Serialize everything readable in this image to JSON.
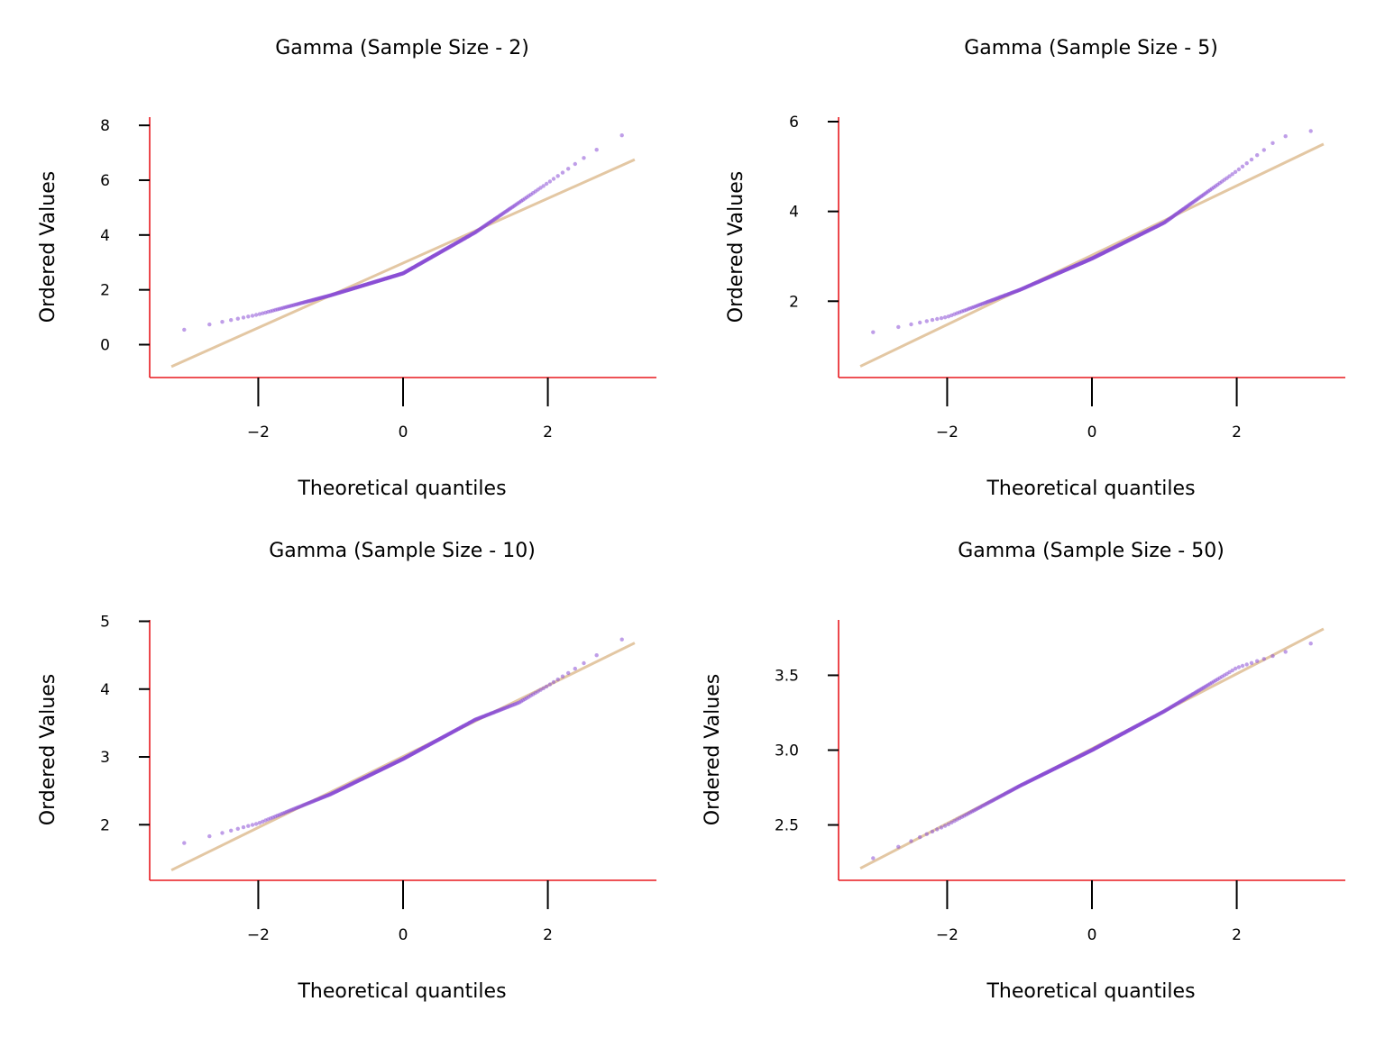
{
  "colors": {
    "spine": "#e8191f",
    "points": "#8a4fd6",
    "fit_line": "#e3c7a3",
    "ticks": "#000000",
    "background": "#ffffff"
  },
  "chart_data": [
    {
      "type": "scatter",
      "title": "Gamma (Sample Size - 2)",
      "xlabel": "Theoretical quantiles",
      "ylabel": "Ordered Values",
      "xlim": [
        -3.5,
        3.5
      ],
      "ylim": [
        -1.2,
        8.3
      ],
      "xticks": [
        -2,
        0,
        2
      ],
      "xtick_labels": [
        "−2",
        "0",
        "2"
      ],
      "yticks": [
        0,
        2,
        4,
        6,
        8
      ],
      "ytick_labels": [
        "0",
        "2",
        "4",
        "6",
        "8"
      ],
      "fit_line": {
        "x": [
          -3.2,
          3.2
        ],
        "y": [
          -0.8,
          6.75
        ]
      },
      "quantile_curve": {
        "x": [
          -3.2,
          -2.0,
          -1.0,
          0.0,
          1.0,
          2.0,
          2.6,
          3.2
        ],
        "y": [
          0.45,
          1.1,
          1.8,
          2.6,
          4.1,
          5.9,
          7.0,
          7.9
        ]
      },
      "grid": false,
      "legend": "none"
    },
    {
      "type": "scatter",
      "title": "Gamma (Sample Size - 5)",
      "xlabel": "Theoretical quantiles",
      "ylabel": "Ordered Values",
      "xlim": [
        -3.5,
        3.5
      ],
      "ylim": [
        0.3,
        6.1
      ],
      "xticks": [
        -2,
        0,
        2
      ],
      "xtick_labels": [
        "−2",
        "0",
        "2"
      ],
      "yticks": [
        2,
        4,
        6
      ],
      "ytick_labels": [
        "2",
        "4",
        "6"
      ],
      "fit_line": {
        "x": [
          -3.2,
          3.2
        ],
        "y": [
          0.55,
          5.5
        ]
      },
      "quantile_curve": {
        "x": [
          -3.2,
          -2.0,
          -1.0,
          0.0,
          1.0,
          2.0,
          2.6,
          3.2
        ],
        "y": [
          1.25,
          1.65,
          2.25,
          2.95,
          3.75,
          4.9,
          5.65,
          5.85
        ]
      },
      "grid": false,
      "legend": "none"
    },
    {
      "type": "scatter",
      "title": "Gamma (Sample Size - 10)",
      "xlabel": "Theoretical quantiles",
      "ylabel": "Ordered Values",
      "xlim": [
        -3.5,
        3.5
      ],
      "ylim": [
        1.18,
        5.02
      ],
      "xticks": [
        -2,
        0,
        2
      ],
      "xtick_labels": [
        "−2",
        "0",
        "2"
      ],
      "yticks": [
        2,
        3,
        4,
        5
      ],
      "ytick_labels": [
        "2",
        "3",
        "4",
        "5"
      ],
      "fit_line": {
        "x": [
          -3.2,
          3.2
        ],
        "y": [
          1.33,
          4.68
        ]
      },
      "quantile_curve": {
        "x": [
          -3.2,
          -2.0,
          -1.0,
          0.0,
          1.0,
          1.6,
          2.0,
          3.2
        ],
        "y": [
          1.68,
          2.02,
          2.45,
          2.97,
          3.55,
          3.8,
          4.05,
          4.85
        ]
      },
      "grid": false,
      "legend": "none"
    },
    {
      "type": "scatter",
      "title": "Gamma (Sample Size - 50)",
      "xlabel": "Theoretical quantiles",
      "ylabel": "Ordered Values",
      "xlim": [
        -3.5,
        3.5
      ],
      "ylim": [
        2.13,
        3.87
      ],
      "xticks": [
        -2,
        0,
        2
      ],
      "xtick_labels": [
        "−2",
        "0",
        "2"
      ],
      "yticks": [
        2.5,
        3.0,
        3.5
      ],
      "ytick_labels": [
        "2.5",
        "3.0",
        "3.5"
      ],
      "fit_line": {
        "x": [
          -3.2,
          3.2
        ],
        "y": [
          2.21,
          3.81
        ]
      },
      "quantile_curve": {
        "x": [
          -3.2,
          -2.0,
          -1.0,
          0.0,
          1.0,
          2.0,
          3.2
        ],
        "y": [
          2.24,
          2.5,
          2.76,
          3.0,
          3.26,
          3.55,
          3.74
        ]
      },
      "grid": false,
      "legend": "none"
    }
  ]
}
